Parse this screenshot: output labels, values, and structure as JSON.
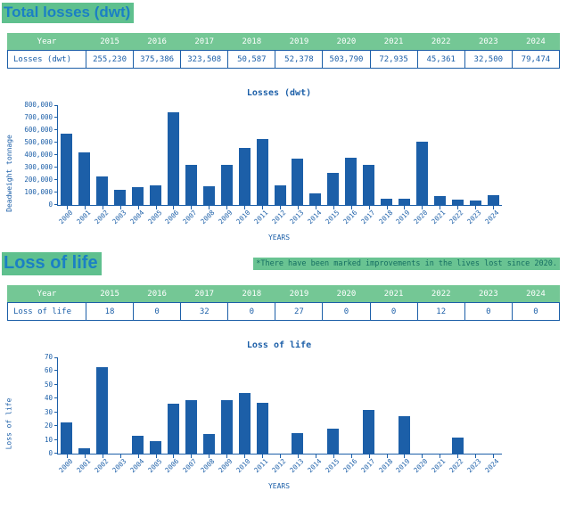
{
  "section1": {
    "title": "Total losses (dwt)"
  },
  "section2": {
    "title": "Loss of life",
    "note": "*There have been marked improvements in the lives lost since 2020."
  },
  "tables": [
    {
      "header_label": "Year",
      "row_label": "Losses (dwt)",
      "years": [
        "2015",
        "2016",
        "2017",
        "2018",
        "2019",
        "2020",
        "2021",
        "2022",
        "2023",
        "2024"
      ],
      "values": [
        "255,230",
        "375,386",
        "323,508",
        "50,587",
        "52,378",
        "503,790",
        "72,935",
        "45,361",
        "32,500",
        "79,474"
      ]
    },
    {
      "header_label": "Year",
      "row_label": "Loss of life",
      "years": [
        "2015",
        "2016",
        "2017",
        "2018",
        "2019",
        "2020",
        "2021",
        "2022",
        "2023",
        "2024"
      ],
      "values": [
        "18",
        "0",
        "32",
        "0",
        "27",
        "0",
        "0",
        "12",
        "0",
        "0"
      ]
    }
  ],
  "chart_data": [
    {
      "type": "bar",
      "title": "Losses (dwt)",
      "xlabel": "YEARS",
      "ylabel": "Deadweight tonnage",
      "ylim": [
        0,
        800000
      ],
      "ytick_step": 100000,
      "grid": false,
      "legend": false,
      "categories": [
        "2000",
        "2001",
        "2002",
        "2003",
        "2004",
        "2005",
        "2006",
        "2007",
        "2008",
        "2009",
        "2010",
        "2011",
        "2012",
        "2013",
        "2014",
        "2015",
        "2016",
        "2017",
        "2018",
        "2019",
        "2020",
        "2021",
        "2022",
        "2023",
        "2024"
      ],
      "values": [
        570000,
        420000,
        230000,
        125000,
        145000,
        155000,
        740000,
        320000,
        150000,
        320000,
        455000,
        530000,
        160000,
        370000,
        90000,
        255230,
        375386,
        323508,
        50587,
        52378,
        503790,
        72935,
        45361,
        32500,
        79474
      ]
    },
    {
      "type": "bar",
      "title": "Loss of life",
      "xlabel": "YEARS",
      "ylabel": "Loss of life",
      "ylim": [
        0,
        70
      ],
      "ytick_step": 10,
      "grid": false,
      "legend": false,
      "categories": [
        "2000",
        "2001",
        "2002",
        "2003",
        "2004",
        "2005",
        "2006",
        "2007",
        "2008",
        "2009",
        "2010",
        "2011",
        "2012",
        "2013",
        "2014",
        "2015",
        "2016",
        "2017",
        "2018",
        "2019",
        "2020",
        "2021",
        "2022",
        "2023",
        "2024"
      ],
      "values": [
        23,
        4,
        63,
        0,
        13,
        9,
        36,
        39,
        14,
        39,
        44,
        37,
        0,
        15,
        0,
        18,
        0,
        32,
        0,
        27,
        0,
        0,
        12,
        0,
        0
      ]
    }
  ],
  "colors": {
    "bar_blue": "#1c5fa8",
    "heading_blue": "#1b80c4",
    "highlight_green": "#5fc08e",
    "table_header_green": "#74c795",
    "note_text_teal": "#156e62"
  }
}
